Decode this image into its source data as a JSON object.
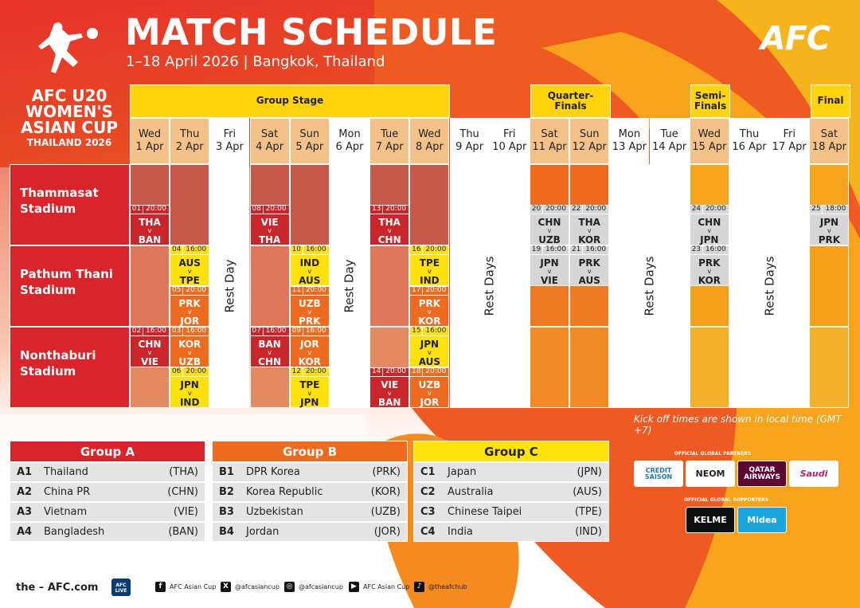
{
  "header": {
    "title": "MATCH SCHEDULE",
    "subtitle": "1–18 April 2026 | Bangkok, Thailand",
    "afc_logo": "AFC"
  },
  "logo": {
    "line1": "AFC U20",
    "line2": "WOMEN'S",
    "line3": "ASIAN CUP",
    "line4": "THAILAND 2026"
  },
  "stages": {
    "group": "Group Stage",
    "qf": "Quarter-\nFinals",
    "sf": "Semi-\nFinals",
    "final": "Final"
  },
  "days": [
    {
      "d": "Wed",
      "n": "1 Apr"
    },
    {
      "d": "Thu",
      "n": "2 Apr"
    },
    {
      "d": "Fri",
      "n": "3 Apr"
    },
    {
      "d": "Sat",
      "n": "4 Apr"
    },
    {
      "d": "Sun",
      "n": "5 Apr"
    },
    {
      "d": "Mon",
      "n": "6 Apr"
    },
    {
      "d": "Tue",
      "n": "7 Apr"
    },
    {
      "d": "Wed",
      "n": "8 Apr"
    },
    {
      "d": "Thu",
      "n": "9 Apr"
    },
    {
      "d": "Fri",
      "n": "10 Apr"
    },
    {
      "d": "Sat",
      "n": "11 Apr"
    },
    {
      "d": "Sun",
      "n": "12 Apr"
    },
    {
      "d": "Mon",
      "n": "13 Apr"
    },
    {
      "d": "Tue",
      "n": "14 Apr"
    },
    {
      "d": "Wed",
      "n": "15 Apr"
    },
    {
      "d": "Thu",
      "n": "16 Apr"
    },
    {
      "d": "Fri",
      "n": "17 Apr"
    },
    {
      "d": "Sat",
      "n": "18 Apr"
    }
  ],
  "venues": [
    {
      "name": "Thammasat\nStadium"
    },
    {
      "name": "Pathum Thani\nStadium"
    },
    {
      "name": "Nonthaburi\nStadium"
    }
  ],
  "rest": {
    "day": "Rest Day",
    "days": "Rest Days"
  },
  "matches": [
    {
      "n": "01",
      "t": "20:00",
      "a": "THA",
      "b": "BAN",
      "day": 0,
      "slot": 1,
      "c": "red"
    },
    {
      "n": "02",
      "t": "16:00",
      "a": "CHN",
      "b": "VIE",
      "day": 0,
      "slot": 4,
      "c": "red"
    },
    {
      "n": "04",
      "t": "16:00",
      "a": "AUS",
      "b": "TPE",
      "day": 1,
      "slot": 2,
      "c": "yel"
    },
    {
      "n": "05",
      "t": "20:00",
      "a": "PRK",
      "b": "JOR",
      "day": 1,
      "slot": 3,
      "c": "or"
    },
    {
      "n": "03",
      "t": "16:00",
      "a": "KOR",
      "b": "UZB",
      "day": 1,
      "slot": 4,
      "c": "or"
    },
    {
      "n": "06",
      "t": "20:00",
      "a": "JPN",
      "b": "IND",
      "day": 1,
      "slot": 5,
      "c": "yel"
    },
    {
      "n": "08",
      "t": "20:00",
      "a": "VIE",
      "b": "THA",
      "day": 3,
      "slot": 1,
      "c": "red"
    },
    {
      "n": "07",
      "t": "16:00",
      "a": "BAN",
      "b": "CHN",
      "day": 3,
      "slot": 4,
      "c": "red"
    },
    {
      "n": "10",
      "t": "16:00",
      "a": "IND",
      "b": "AUS",
      "day": 4,
      "slot": 2,
      "c": "yel"
    },
    {
      "n": "11",
      "t": "20:00",
      "a": "UZB",
      "b": "PRK",
      "day": 4,
      "slot": 3,
      "c": "or"
    },
    {
      "n": "09",
      "t": "16:00",
      "a": "JOR",
      "b": "KOR",
      "day": 4,
      "slot": 4,
      "c": "or"
    },
    {
      "n": "12",
      "t": "20:00",
      "a": "TPE",
      "b": "JPN",
      "day": 4,
      "slot": 5,
      "c": "yel"
    },
    {
      "n": "13",
      "t": "20:00",
      "a": "THA",
      "b": "CHN",
      "day": 6,
      "slot": 1,
      "c": "red"
    },
    {
      "n": "14",
      "t": "20:00",
      "a": "VIE",
      "b": "BAN",
      "day": 6,
      "slot": 5,
      "c": "red"
    },
    {
      "n": "16",
      "t": "20:00",
      "a": "TPE",
      "b": "IND",
      "day": 7,
      "slot": 2,
      "c": "yel"
    },
    {
      "n": "17",
      "t": "20:00",
      "a": "PRK",
      "b": "KOR",
      "day": 7,
      "slot": 3,
      "c": "or"
    },
    {
      "n": "15",
      "t": "16:00",
      "a": "JPN",
      "b": "AUS",
      "day": 7,
      "slot": 4,
      "c": "yel"
    },
    {
      "n": "18",
      "t": "20:00",
      "a": "UZB",
      "b": "JOR",
      "day": 7,
      "slot": 5,
      "c": "or"
    },
    {
      "n": "20",
      "t": "20:00",
      "a": "CHN",
      "b": "UZB",
      "day": 10,
      "slot": 1,
      "c": "gry"
    },
    {
      "n": "19",
      "t": "16:00",
      "a": "JPN",
      "b": "VIE",
      "day": 10,
      "slot": 2,
      "c": "gry"
    },
    {
      "n": "22",
      "t": "20:00",
      "a": "THA",
      "b": "KOR",
      "day": 11,
      "slot": 1,
      "c": "gry"
    },
    {
      "n": "21",
      "t": "16:00",
      "a": "PRK",
      "b": "AUS",
      "day": 11,
      "slot": 2,
      "c": "gry"
    },
    {
      "n": "24",
      "t": "20:00",
      "a": "CHN",
      "b": "JPN",
      "day": 14,
      "slot": 1,
      "c": "gry"
    },
    {
      "n": "23",
      "t": "16:00",
      "a": "PRK",
      "b": "KOR",
      "day": 14,
      "slot": 2,
      "c": "gry"
    },
    {
      "n": "25",
      "t": "18:00",
      "a": "JPN",
      "b": "PRK",
      "day": 17,
      "slot": 1,
      "c": "gry"
    }
  ],
  "vs": "v",
  "kickoff_note": "Kick off times are shown in local time (GMT +7)",
  "groups": [
    {
      "title": "Group A",
      "color": "#d9242b",
      "teams": [
        {
          "c": "A1",
          "n": "Thailand",
          "a": "(THA)"
        },
        {
          "c": "A2",
          "n": "China PR",
          "a": "(CHN)"
        },
        {
          "c": "A3",
          "n": "Vietnam",
          "a": "(VIE)"
        },
        {
          "c": "A4",
          "n": "Bangladesh",
          "a": "(BAN)"
        }
      ]
    },
    {
      "title": "Group B",
      "color": "#ee6a1f",
      "teams": [
        {
          "c": "B1",
          "n": "DPR Korea",
          "a": "(PRK)"
        },
        {
          "c": "B2",
          "n": "Korea Republic",
          "a": "(KOR)"
        },
        {
          "c": "B3",
          "n": "Uzbekistan",
          "a": "(UZB)"
        },
        {
          "c": "B4",
          "n": "Jordan",
          "a": "(JOR)"
        }
      ]
    },
    {
      "title": "Group C",
      "color": "#ffe20c",
      "teams": [
        {
          "c": "C1",
          "n": "Japan",
          "a": "(JPN)"
        },
        {
          "c": "C2",
          "n": "Australia",
          "a": "(AUS)"
        },
        {
          "c": "C3",
          "n": "Chinese Taipei",
          "a": "(TPE)"
        },
        {
          "c": "C4",
          "n": "India",
          "a": "(IND)"
        }
      ]
    }
  ],
  "sponsors": {
    "partners_label": "OFFICIAL GLOBAL PARTNERS",
    "supporters_label": "OFFICIAL GLOBAL SUPPORTERS",
    "partners": [
      "CREDIT SAISON",
      "NEOM",
      "QATAR AIRWAYS",
      "Saudi"
    ],
    "supporters": [
      "KELME",
      "Midea"
    ]
  },
  "footer": {
    "site": "the – AFC.com",
    "live": "AFC LIVE",
    "facebook": "AFC Asian Cup",
    "x": "@afcasiancup",
    "instagram": "@afcasiancup",
    "youtube": "AFC Asian Cup",
    "tiktok": "@theafchub"
  }
}
